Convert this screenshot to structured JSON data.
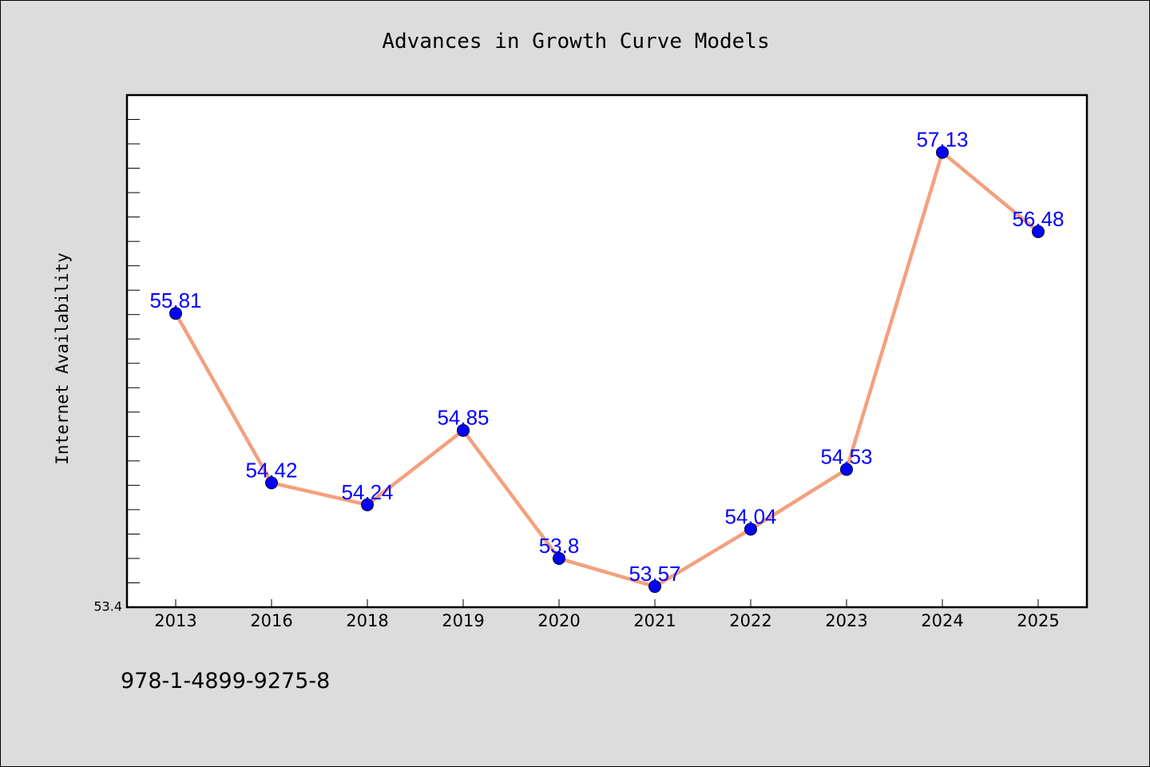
{
  "chart_data": {
    "type": "line",
    "title": "Advances in Growth Curve Models",
    "xlabel": "",
    "ylabel": "Internet Availability",
    "categories": [
      "2013",
      "2016",
      "2018",
      "2019",
      "2020",
      "2021",
      "2022",
      "2023",
      "2024",
      "2025"
    ],
    "series": [
      {
        "values": [
          55.81,
          54.42,
          54.24,
          54.85,
          53.8,
          53.57,
          54.04,
          54.53,
          57.13,
          56.48
        ]
      }
    ],
    "data_labels": [
      "55.81",
      "54.42",
      "54.24",
      "54.85",
      "53.8",
      "53.57",
      "54.04",
      "54.53",
      "57.13",
      "56.48"
    ],
    "y_tick_labels": [
      "53.4"
    ],
    "ylim": [
      53.4,
      57.6
    ],
    "grid": false,
    "legend": "none",
    "line_color": "#f4a07e",
    "marker_color": "#0000ff",
    "label_color": "#0000ff"
  },
  "footer": {
    "isbn": "978-1-4899-9275-8"
  }
}
